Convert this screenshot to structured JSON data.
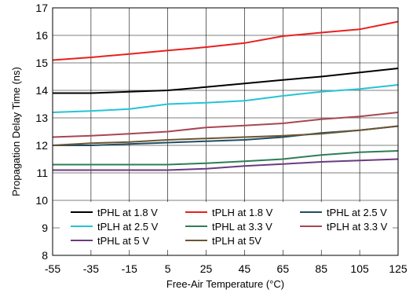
{
  "chart_data": {
    "type": "line",
    "title": "",
    "xlabel": "Free-Air Temperature (°C)",
    "ylabel": "Propagation Delay Time (ns)",
    "xlim": [
      -55,
      125
    ],
    "ylim": [
      8,
      17
    ],
    "x_ticks": [
      "-55",
      "-35",
      "-15",
      "5",
      "25",
      "45",
      "65",
      "85",
      "105",
      "125"
    ],
    "y_ticks": [
      "8",
      "9",
      "10",
      "11",
      "12",
      "13",
      "14",
      "15",
      "16",
      "17"
    ],
    "grid": true,
    "legend_position": "bottom",
    "x": [
      -55,
      -35,
      -15,
      5,
      25,
      45,
      65,
      85,
      105,
      125
    ],
    "series": [
      {
        "name": "tPHL at 1.8 V",
        "color": "#000000",
        "values": [
          13.9,
          13.9,
          13.95,
          14.0,
          14.12,
          14.25,
          14.38,
          14.5,
          14.65,
          14.8
        ]
      },
      {
        "name": "tPLH at 1.8 V",
        "color": "#e8201e",
        "values": [
          15.1,
          15.2,
          15.32,
          15.45,
          15.57,
          15.72,
          15.97,
          16.1,
          16.22,
          16.5
        ]
      },
      {
        "name": "tPHL at 2.5 V",
        "color": "#1e4e63",
        "values": [
          12.0,
          12.0,
          12.05,
          12.1,
          12.15,
          12.2,
          12.3,
          12.45,
          12.55,
          12.7
        ]
      },
      {
        "name": "tPLH at 2.5 V",
        "color": "#25c3d6",
        "values": [
          13.2,
          13.25,
          13.32,
          13.5,
          13.55,
          13.62,
          13.8,
          13.95,
          14.05,
          14.2
        ]
      },
      {
        "name": "tPHL at 3.3 V",
        "color": "#2e7d58",
        "values": [
          11.3,
          11.3,
          11.3,
          11.3,
          11.35,
          11.42,
          11.5,
          11.65,
          11.75,
          11.8
        ]
      },
      {
        "name": "tPLH at 3.3 V",
        "color": "#a84652",
        "values": [
          12.3,
          12.35,
          12.42,
          12.5,
          12.65,
          12.72,
          12.8,
          12.95,
          13.05,
          13.2
        ]
      },
      {
        "name": "tPHL at 5 V",
        "color": "#6b3a80",
        "values": [
          11.1,
          11.1,
          11.1,
          11.1,
          11.15,
          11.25,
          11.32,
          11.4,
          11.45,
          11.5
        ]
      },
      {
        "name": "tPLH at 5V",
        "color": "#6b5533",
        "values": [
          12.0,
          12.08,
          12.12,
          12.2,
          12.25,
          12.3,
          12.35,
          12.42,
          12.55,
          12.7
        ]
      }
    ],
    "legend_order": [
      0,
      3,
      6,
      1,
      4,
      7,
      2,
      5
    ]
  }
}
